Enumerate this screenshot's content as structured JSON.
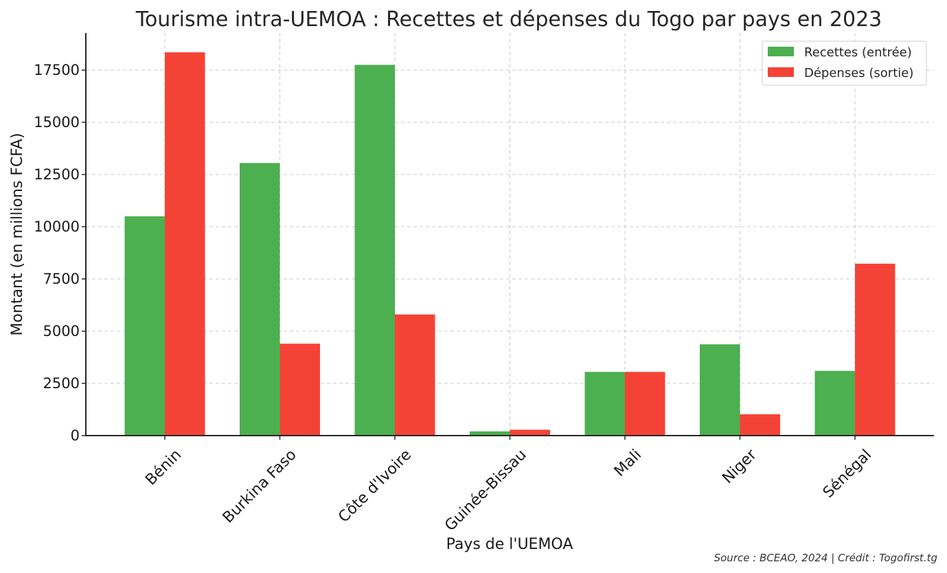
{
  "chart_data": {
    "type": "bar",
    "title": "Tourisme intra-UEMOA : Recettes et dépenses du Togo par pays en 2023",
    "xlabel": "Pays de l'UEMOA",
    "ylabel": "Montant (en millions FCFA)",
    "categories": [
      "Bénin",
      "Burkina Faso",
      "Côte d'Ivoire",
      "Guinée-Bissau",
      "Mali",
      "Niger",
      "Sénégal"
    ],
    "series": [
      {
        "name": "Recettes (entrée)",
        "color": "#4caf50",
        "values": [
          10500,
          13050,
          17750,
          200,
          3050,
          4370,
          3100
        ]
      },
      {
        "name": "Dépenses (sortie)",
        "color": "#f44336",
        "values": [
          18350,
          4400,
          5800,
          280,
          3050,
          1020,
          8230
        ]
      }
    ],
    "ylim": [
      0,
      19250
    ],
    "yticks": [
      0,
      2500,
      5000,
      7500,
      10000,
      12500,
      15000,
      17500
    ],
    "grid": true,
    "legend_position": "top-right",
    "source": "Source : BCEAO, 2024 | Crédit : Togofirst.tg"
  }
}
